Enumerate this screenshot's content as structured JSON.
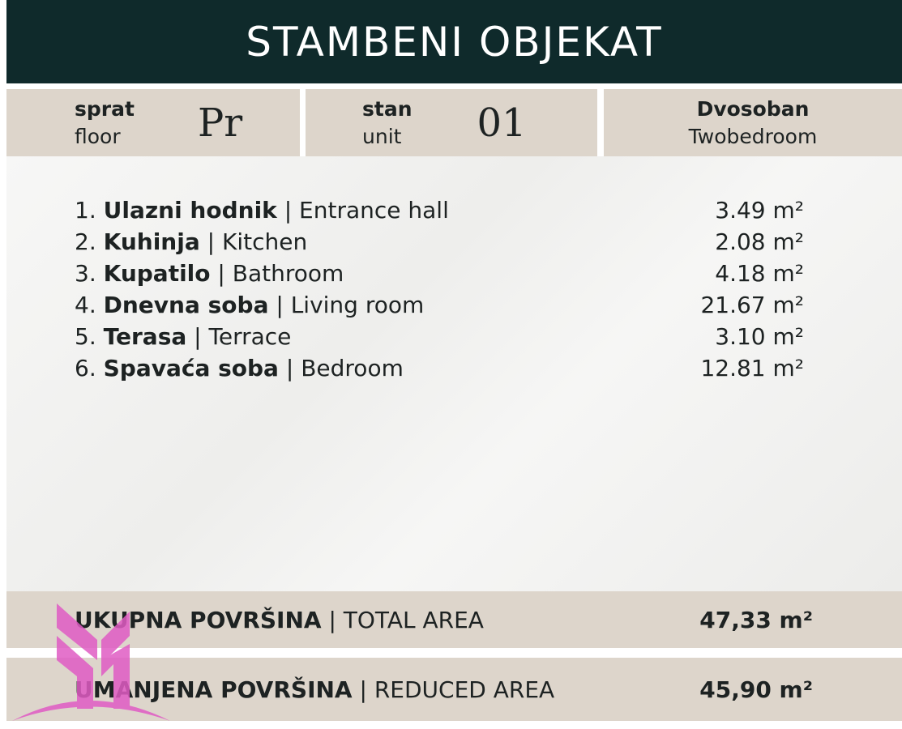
{
  "title": "STAMBENI OBJEKAT",
  "info": {
    "floor": {
      "label_sr": "sprat",
      "label_en": "floor",
      "value": "Pr"
    },
    "unit": {
      "label_sr": "stan",
      "label_en": "unit",
      "value": "01"
    },
    "type": {
      "label_sr": "Dvosoban",
      "label_en": "Twobedroom"
    }
  },
  "rooms": [
    {
      "num": "1.",
      "name_sr": "Ulazni hodnik",
      "name_en": "Entrance hall",
      "area": "3.49 m²"
    },
    {
      "num": "2.",
      "name_sr": "Kuhinja",
      "name_en": "Kitchen",
      "area": "2.08 m²"
    },
    {
      "num": "3.",
      "name_sr": "Kupatilo",
      "name_en": "Bathroom",
      "area": "4.18 m²"
    },
    {
      "num": "4.",
      "name_sr": "Dnevna soba",
      "name_en": "Living room",
      "area": "21.67 m²"
    },
    {
      "num": "5.",
      "name_sr": "Terasa",
      "name_en": "Terrace",
      "area": "3.10 m²"
    },
    {
      "num": "6.",
      "name_sr": "Spavaća soba",
      "name_en": "Bedroom",
      "area": "12.81 m²"
    }
  ],
  "totals": {
    "total": {
      "label_sr": "UKUPNA POVRŠINA",
      "label_en": "TOTAL AREA",
      "value": "47,33 m²"
    },
    "reduced": {
      "label_sr": "UMANJENA POVRŠINA",
      "label_en": "REDUCED AREA",
      "value": "45,90 m²"
    }
  },
  "colors": {
    "header": "#0f2a2b",
    "band": "#ddd5cb",
    "logo": "#e05cc4"
  }
}
